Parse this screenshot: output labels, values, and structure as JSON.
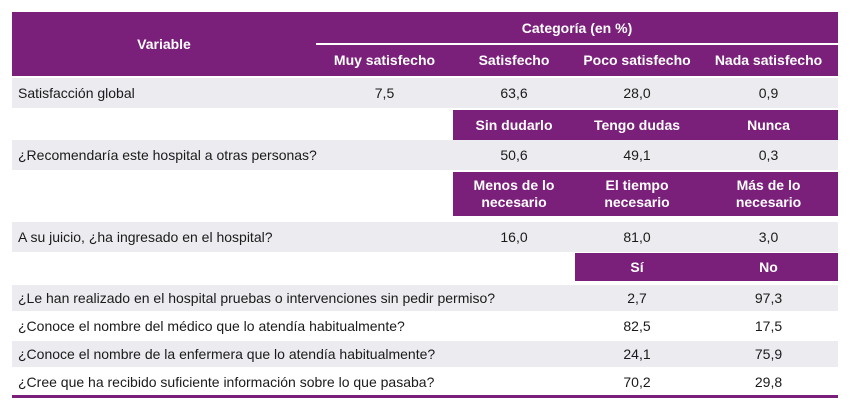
{
  "header": {
    "variable": "Variable",
    "category": "Categoría (en %)",
    "cols": [
      "Muy satisfecho",
      "Satisfecho",
      "Poco satisfecho",
      "Nada satisfecho"
    ]
  },
  "rows": {
    "satisfaccion": {
      "label": "Satisfacción global",
      "values": [
        "7,5",
        "63,6",
        "28,0",
        "0,9"
      ]
    },
    "recomendacion_header": [
      "Sin dudarlo",
      "Tengo dudas",
      "Nunca"
    ],
    "recomendacion": {
      "label": "¿Recomendaría este hospital a otras personas?",
      "values": [
        "50,6",
        "49,1",
        "0,3"
      ]
    },
    "ingreso_header": [
      "Menos de lo necesario",
      "El tiempo necesario",
      "Más de lo necesario"
    ],
    "ingreso": {
      "label": "A su juicio, ¿ha ingresado en el hospital?",
      "values": [
        "16,0",
        "81,0",
        "3,0"
      ]
    },
    "sino_header": [
      "Sí",
      "No"
    ],
    "pruebas": {
      "label": "¿Le han realizado en el hospital pruebas o intervenciones sin pedir permiso?",
      "values": [
        "2,7",
        "97,3"
      ]
    },
    "medico": {
      "label": "¿Conoce el nombre del médico que lo atendía habitualmente?",
      "values": [
        "82,5",
        "17,5"
      ]
    },
    "enfermera": {
      "label": "¿Conoce el nombre de la enfermera que lo atendía habitualmente?",
      "values": [
        "24,1",
        "75,9"
      ]
    },
    "informacion": {
      "label": "¿Cree que ha recibido suficiente información sobre lo que pasaba?",
      "values": [
        "70,2",
        "29,8"
      ]
    }
  },
  "colors": {
    "header_bg": "#7a1f7a",
    "row_grey": "#ececf0",
    "header_text": "#ffffff"
  }
}
